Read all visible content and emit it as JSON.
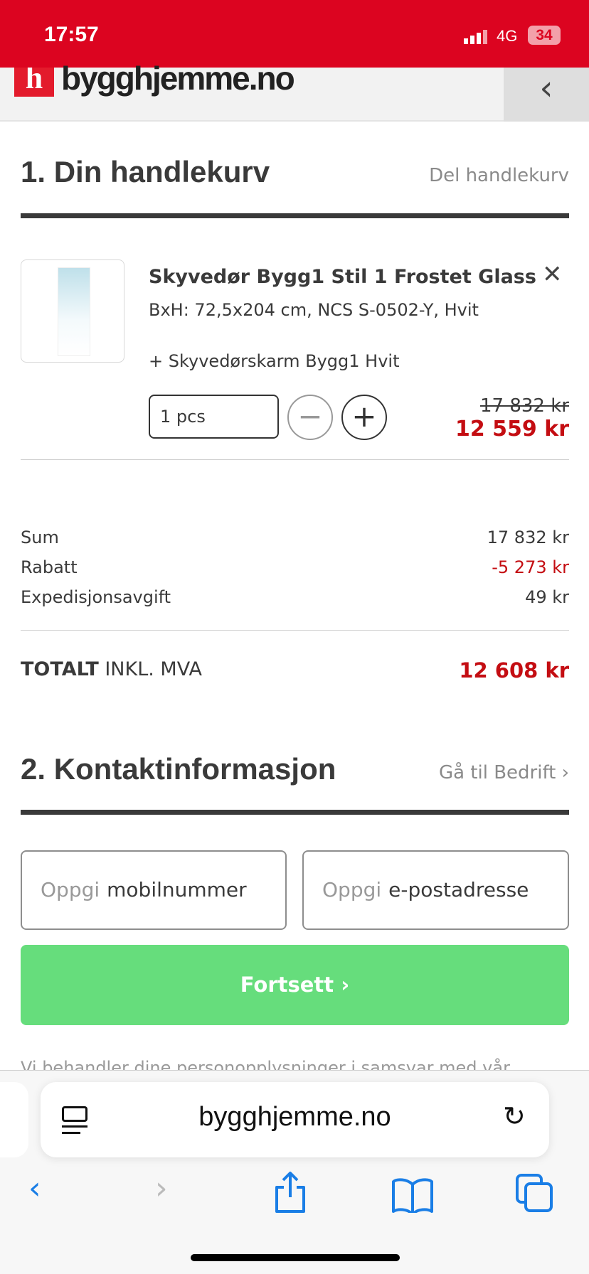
{
  "status_bar": {
    "time": "17:57",
    "network": "4G",
    "battery": "34"
  },
  "header": {
    "logo": "bygghjemme.no",
    "back_icon": "chevron-left-icon"
  },
  "cart": {
    "title": "1. Din handlekurv",
    "share_link": "Del handlekurv",
    "item": {
      "name": "Skyvedør Bygg1 Stil 1 Frostet Glass",
      "details": "BxH: 72,5x204 cm, NCS S-0502-Y, Hvit",
      "addon": "+ Skyvedørskarm Bygg1 Hvit",
      "quantity": "1 pcs",
      "old_price": "17 832 kr",
      "price": "12 559 kr"
    },
    "summary": [
      {
        "label": "Sum",
        "value": "17 832 kr"
      },
      {
        "label": "Rabatt",
        "value": "-5 273 kr"
      },
      {
        "label": "Expedisjonsavgift",
        "value": "49 kr"
      }
    ],
    "total": {
      "label_bold": "TOTALT",
      "label_rest": "INKL. MVA",
      "value": "12 608 kr"
    }
  },
  "contact": {
    "title": "2. Kontaktinformasjon",
    "business_link": "Gå til Bedrift ›",
    "phone": {
      "prefix": "Oppgi",
      "label": "mobilnummer"
    },
    "email": {
      "prefix": "Oppgi",
      "label": "e-postadresse"
    },
    "continue_label": "Fortsett ›",
    "privacy": "Vi behandler dine personopplysninger i samsvar med vår"
  },
  "browser": {
    "url": "bygghjemme.no"
  },
  "colors": {
    "brand": "#dc0420",
    "price": "#c40d12",
    "button": "#66dd7c",
    "ios_blue": "#1a7ee6"
  }
}
